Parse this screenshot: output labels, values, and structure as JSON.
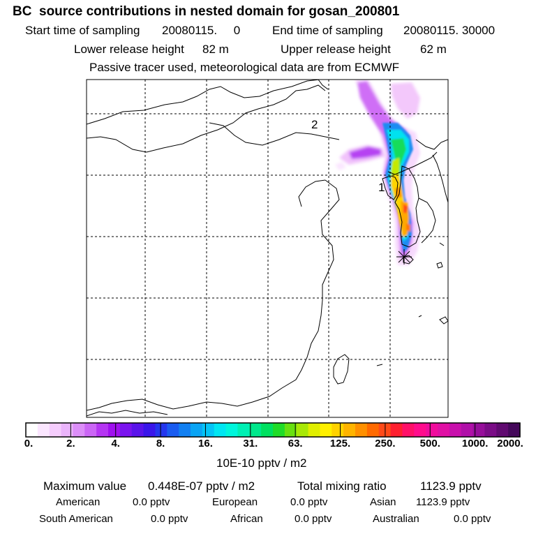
{
  "header": {
    "title": "BC  source contributions in nested domain for gosan_200801",
    "start_label": "Start time of sampling",
    "start_value": "20080115.     0",
    "end_label": "End time of sampling",
    "end_value": "20080115. 30000",
    "lower_label": "Lower release height",
    "lower_value": "82 m",
    "upper_label": "Upper release height",
    "upper_value": "62 m",
    "note": "Passive tracer used, meteorological data are from ECMWF"
  },
  "map": {
    "region_labels": [
      "2",
      "1"
    ],
    "receptor_marker": "receptor-star-icon"
  },
  "colorbar": {
    "labels": [
      "0.",
      "2.",
      "4.",
      "8.",
      "16.",
      "31.",
      "63.",
      "125.",
      "250.",
      "500.",
      "1000.",
      "2000."
    ],
    "colors": [
      "#ffffff",
      "#fbe6ff",
      "#f5cdfd",
      "#eab4fb",
      "#dc8ef8",
      "#cb66f5",
      "#b536f2",
      "#a010ee",
      "#7a14ee",
      "#5a14ea",
      "#3a16ea",
      "#2436ee",
      "#1a5cf0",
      "#1280f2",
      "#0aa4f4",
      "#04c4f6",
      "#00e6f2",
      "#00f6dc",
      "#00f0b4",
      "#00e88c",
      "#00e060",
      "#20dc28",
      "#68e010",
      "#a8e806",
      "#e0ee00",
      "#fff000",
      "#ffd200",
      "#ffb400",
      "#ff9000",
      "#ff6a00",
      "#ff4a18",
      "#ff2030",
      "#ff1068",
      "#ff0c8c",
      "#f00c9c",
      "#e010a4",
      "#c810ac",
      "#b010a8",
      "#960e9a",
      "#7a0c86",
      "#600a70",
      "#44085a"
    ],
    "units": "10E-10 pptv / m2"
  },
  "stats": {
    "max_label": "Maximum value",
    "max_value": "0.448E-07 pptv / m2",
    "total_label": "Total mixing ratio",
    "total_value": "1123.9 pptv",
    "regions": [
      {
        "name": "American",
        "value": "0.0 pptv"
      },
      {
        "name": "European",
        "value": "0.0 pptv"
      },
      {
        "name": "Asian",
        "value": "1123.9 pptv"
      },
      {
        "name": "South American",
        "value": "0.0 pptv"
      },
      {
        "name": "African",
        "value": "0.0 pptv"
      },
      {
        "name": "Australian",
        "value": "0.0 pptv"
      }
    ]
  }
}
